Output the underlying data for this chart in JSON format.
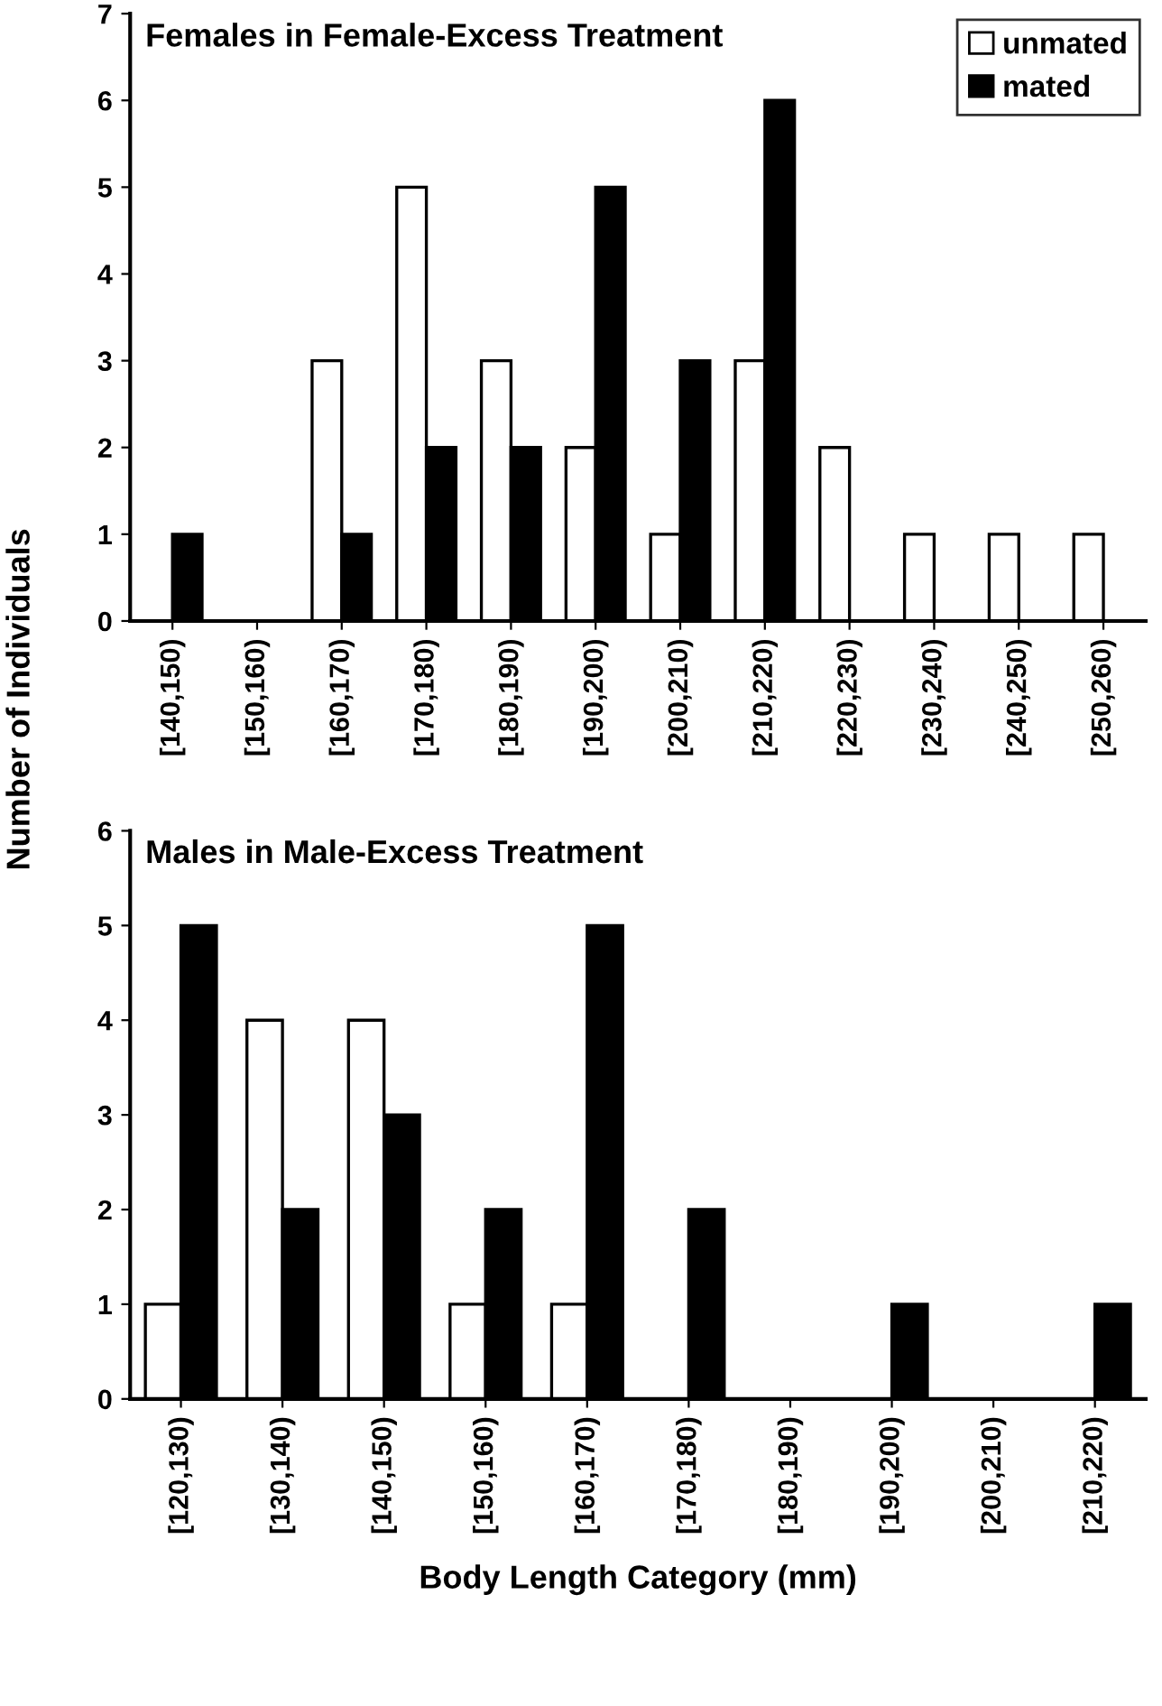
{
  "chart_data": [
    {
      "type": "bar",
      "title": "Females in Female-Excess Treatment",
      "ylabel": "Number of Individuals",
      "categories": [
        "[140,150)",
        "[150,160)",
        "[160,170)",
        "[170,180)",
        "[180,190)",
        "[190,200)",
        "[200,210)",
        "[210,220)",
        "[220,230)",
        "[230,240)",
        "[240,250)",
        "[250,260)"
      ],
      "series": [
        {
          "name": "unmated",
          "color": "#ffffff",
          "values": [
            0,
            0,
            3,
            5,
            3,
            2,
            1,
            3,
            2,
            1,
            1,
            1
          ]
        },
        {
          "name": "mated",
          "color": "#000000",
          "values": [
            1,
            0,
            1,
            2,
            2,
            5,
            3,
            6,
            0,
            0,
            0,
            0
          ]
        }
      ],
      "ylim": [
        0,
        7
      ],
      "yticks": [
        0,
        1,
        2,
        3,
        4,
        5,
        6,
        7
      ],
      "grid": false,
      "legend": "top right"
    },
    {
      "type": "bar",
      "title": "Males in Male-Excess Treatment",
      "xlabel": "Body Length Category (mm)",
      "categories": [
        "[120,130)",
        "[130,140)",
        "[140,150)",
        "[150,160)",
        "[160,170)",
        "[170,180)",
        "[180,190)",
        "[190,200)",
        "[200,210)",
        "[210,220)"
      ],
      "series": [
        {
          "color": "#ffffff",
          "values": [
            1,
            4,
            4,
            1,
            1,
            0,
            0,
            0,
            0,
            0
          ]
        },
        {
          "color": "#000000",
          "values": [
            5,
            2,
            3,
            2,
            5,
            2,
            0,
            1,
            0,
            1
          ]
        }
      ],
      "ylim": [
        0,
        6
      ],
      "yticks": [
        0,
        1,
        2,
        3,
        4,
        5,
        6
      ],
      "grid": false,
      "legend": false
    }
  ]
}
